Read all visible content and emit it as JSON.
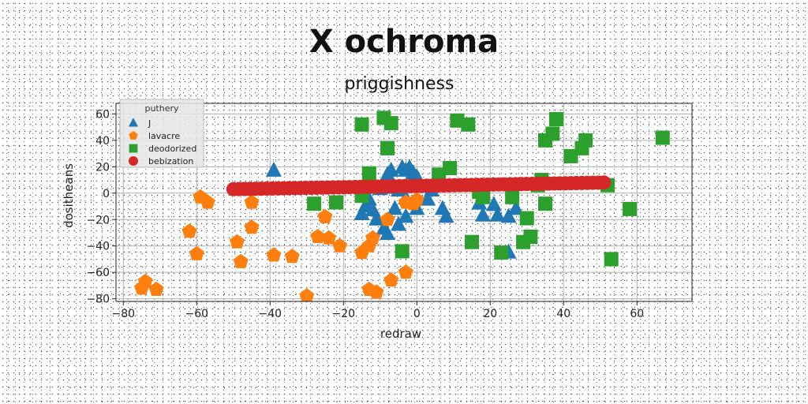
{
  "figure": {
    "suptitle": "X ochroma"
  },
  "chart_data": {
    "type": "scatter",
    "title": "priggishness",
    "xlabel": "redraw",
    "ylabel": "dositheans",
    "xlim": [
      -82,
      75
    ],
    "ylim": [
      -82,
      68
    ],
    "xticks": [
      -80,
      -60,
      -40,
      -20,
      0,
      20,
      40,
      60
    ],
    "yticks": [
      60,
      40,
      20,
      0,
      -20,
      -40,
      -60,
      -80
    ],
    "grid": true,
    "legend": {
      "title": "puthery",
      "placement": "top-left"
    },
    "series": [
      {
        "name": "J",
        "marker": "triangle",
        "color": "#1f77b4",
        "points": [
          [
            -39,
            17
          ],
          [
            -13,
            10
          ],
          [
            -10,
            3
          ],
          [
            -8,
            14
          ],
          [
            -7,
            17
          ],
          [
            -4,
            19
          ],
          [
            -3,
            17
          ],
          [
            -2,
            19
          ],
          [
            -1,
            15
          ],
          [
            0,
            12
          ],
          [
            -6,
            4
          ],
          [
            -5,
            2
          ],
          [
            -3,
            -4
          ],
          [
            -13,
            -5
          ],
          [
            -14,
            -10
          ],
          [
            -12,
            -13
          ],
          [
            -15,
            -16
          ],
          [
            -11,
            -20
          ],
          [
            -9,
            -27
          ],
          [
            -8,
            -31
          ],
          [
            -5,
            -24
          ],
          [
            -3,
            -18
          ],
          [
            -6,
            -12
          ],
          [
            0,
            -12
          ],
          [
            3,
            -5
          ],
          [
            4,
            2
          ],
          [
            7,
            -12
          ],
          [
            8,
            -18
          ],
          [
            17,
            -8
          ],
          [
            18,
            -17
          ],
          [
            21,
            -9
          ],
          [
            22,
            -17
          ],
          [
            25,
            -18
          ],
          [
            25,
            -45
          ],
          [
            27,
            -12
          ]
        ]
      },
      {
        "name": "lavacre",
        "marker": "pentagon",
        "color": "#ff7f0e",
        "points": [
          [
            -75,
            -72
          ],
          [
            -74,
            -67
          ],
          [
            -71,
            -73
          ],
          [
            -62,
            -29
          ],
          [
            -60,
            -46
          ],
          [
            -59,
            -3
          ],
          [
            -57,
            -7
          ],
          [
            -49,
            -37
          ],
          [
            -48,
            -52
          ],
          [
            -45,
            -26
          ],
          [
            -45,
            -7
          ],
          [
            -39,
            -47
          ],
          [
            -34,
            -48
          ],
          [
            -30,
            -78
          ],
          [
            -27,
            -33
          ],
          [
            -25,
            -18
          ],
          [
            -24,
            -34
          ],
          [
            -21,
            -40
          ],
          [
            -15,
            -45
          ],
          [
            -13,
            -40
          ],
          [
            -12,
            -34
          ],
          [
            -13,
            -73
          ],
          [
            -11,
            -75
          ],
          [
            -8,
            -20
          ],
          [
            -7,
            -66
          ],
          [
            -3,
            -60
          ],
          [
            -3,
            -7
          ],
          [
            -1,
            -8
          ],
          [
            0,
            -5
          ]
        ]
      },
      {
        "name": "deodorized",
        "marker": "square",
        "color": "#2ca02c",
        "points": [
          [
            -15,
            52
          ],
          [
            -9,
            57
          ],
          [
            -7,
            53
          ],
          [
            -8,
            34
          ],
          [
            -13,
            15
          ],
          [
            -28,
            -8
          ],
          [
            -22,
            -7
          ],
          [
            -15,
            -2
          ],
          [
            -4,
            -44
          ],
          [
            6,
            14
          ],
          [
            9,
            19
          ],
          [
            11,
            55
          ],
          [
            14,
            52
          ],
          [
            17,
            1
          ],
          [
            18,
            -3
          ],
          [
            15,
            -37
          ],
          [
            23,
            -45
          ],
          [
            26,
            -3
          ],
          [
            29,
            -37
          ],
          [
            31,
            -33
          ],
          [
            30,
            -19
          ],
          [
            33,
            6
          ],
          [
            34,
            10
          ],
          [
            35,
            40
          ],
          [
            35,
            -8
          ],
          [
            37,
            45
          ],
          [
            38,
            56
          ],
          [
            42,
            28
          ],
          [
            45,
            34
          ],
          [
            46,
            40
          ],
          [
            52,
            6
          ],
          [
            53,
            -50
          ],
          [
            58,
            -12
          ],
          [
            67,
            42
          ]
        ]
      },
      {
        "name": "bebization",
        "marker": "circle",
        "color": "#d62728",
        "line_from": [
          -50,
          3
        ],
        "line_to": [
          51,
          8
        ],
        "point_count": 68
      }
    ]
  }
}
